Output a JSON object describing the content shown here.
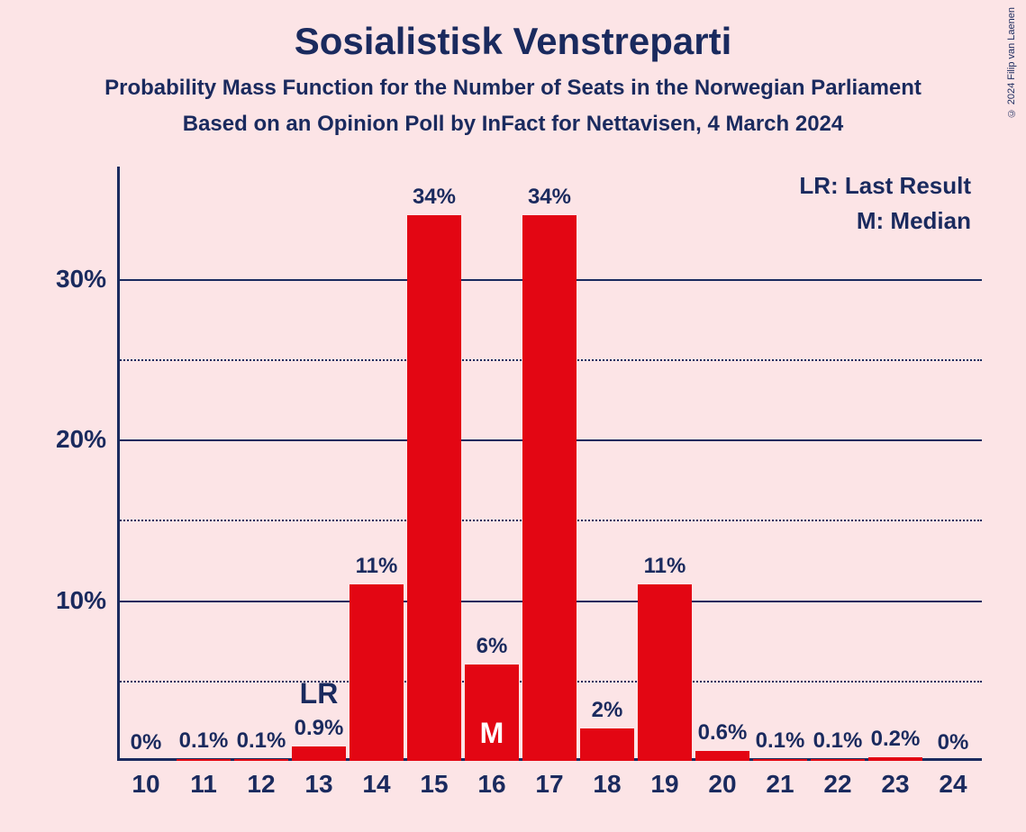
{
  "title": "Sosialistisk Venstreparti",
  "subtitle1": "Probability Mass Function for the Number of Seats in the Norwegian Parliament",
  "subtitle2": "Based on an Opinion Poll by InFact for Nettavisen, 4 March 2024",
  "copyright": "© 2024 Filip van Laenen",
  "legend": {
    "lr": "LR: Last Result",
    "m": "M: Median"
  },
  "chart": {
    "type": "bar",
    "background_color": "#fce4e6",
    "axis_color": "#1a2a5e",
    "grid_major_color": "#1a2a5e",
    "grid_minor_color": "#1a2a5e",
    "bar_color": "#e30613",
    "text_color": "#1a2a5e",
    "title_fontsize": 42,
    "subtitle_fontsize": 24,
    "tick_fontsize": 28,
    "barlabel_fontsize": 24,
    "legend_fontsize": 26,
    "annot_fontsize": 32,
    "y_max": 37,
    "y_major_ticks": [
      10,
      20,
      30
    ],
    "y_minor_ticks": [
      5,
      15,
      25
    ],
    "y_tick_labels": [
      "10%",
      "20%",
      "30%"
    ],
    "bar_gap_ratio": 0.06,
    "categories": [
      "10",
      "11",
      "12",
      "13",
      "14",
      "15",
      "16",
      "17",
      "18",
      "19",
      "20",
      "21",
      "22",
      "23",
      "24"
    ],
    "values": [
      0,
      0.1,
      0.1,
      0.9,
      11,
      34,
      6,
      34,
      2,
      11,
      0.6,
      0.1,
      0.1,
      0.2,
      0
    ],
    "value_labels": [
      "0%",
      "0.1%",
      "0.1%",
      "0.9%",
      "11%",
      "34%",
      "6%",
      "34%",
      "2%",
      "11%",
      "0.6%",
      "0.1%",
      "0.1%",
      "0.2%",
      "0%"
    ],
    "lr_index": 3,
    "lr_label": "LR",
    "median_index": 6,
    "median_label": "M"
  }
}
